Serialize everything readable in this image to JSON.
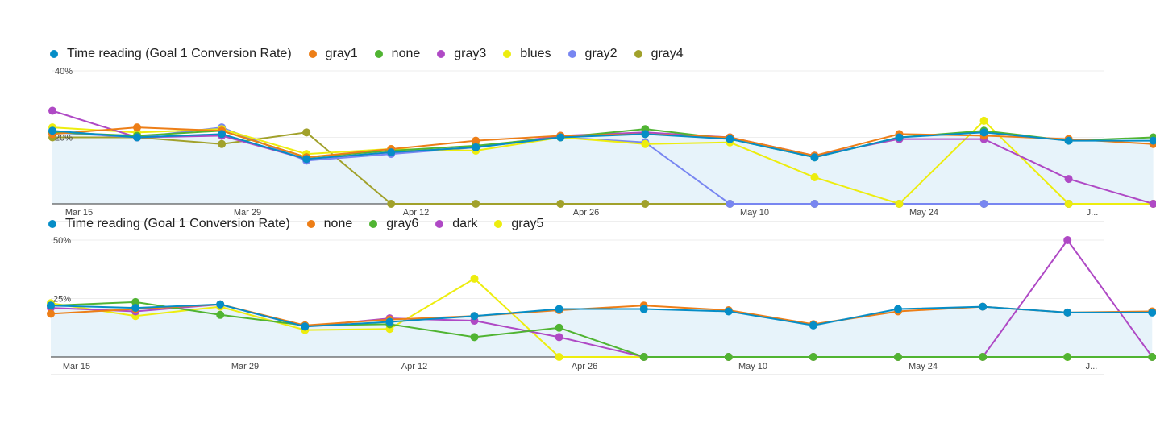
{
  "chart_data": [
    {
      "type": "area",
      "x_labels": [
        "Mar 15",
        "Mar 29",
        "Apr 12",
        "Apr 26",
        "May 10",
        "May 24",
        "J..."
      ],
      "y_ticks": [
        "40%",
        "20%"
      ],
      "ylim": [
        0,
        40
      ],
      "grid": true,
      "legend_position": "top-left",
      "series": [
        {
          "name": "Time reading (Goal 1 Conversion Rate)",
          "color": "#058dc7",
          "filled": true,
          "values": [
            22,
            20,
            21,
            13.5,
            15.5,
            17,
            20,
            21,
            19.5,
            14,
            20,
            21.5,
            19,
            19
          ]
        },
        {
          "name": "gray1",
          "color": "#ed7e17",
          "values": [
            21,
            23,
            22,
            14,
            16.5,
            19,
            20.5,
            21,
            20,
            14.5,
            21,
            20.5,
            19.5,
            18
          ]
        },
        {
          "name": "none",
          "color": "#50b432",
          "values": [
            21.5,
            20.5,
            22,
            14,
            16,
            17.5,
            20,
            22.5,
            19.5,
            14,
            20,
            22,
            19,
            20
          ]
        },
        {
          "name": "gray3",
          "color": "#af49c5",
          "values": [
            28,
            20,
            20.5,
            13.5,
            15.5,
            17,
            20.5,
            21.5,
            20,
            14.5,
            19.5,
            19.5,
            7.5,
            0
          ]
        },
        {
          "name": "blues",
          "color": "#eded0e",
          "values": [
            23,
            21.5,
            22.5,
            15,
            16.5,
            16,
            20,
            18,
            18.5,
            8,
            0,
            25,
            0,
            0
          ]
        },
        {
          "name": "gray2",
          "color": "#7886f1",
          "values": [
            21.5,
            20,
            23,
            13,
            15,
            17,
            20,
            18.5,
            0,
            0,
            0,
            0,
            0,
            0
          ]
        },
        {
          "name": "gray4",
          "color": "#a1a12b",
          "values": [
            20,
            20,
            18,
            21.5,
            0,
            0,
            0,
            0,
            0,
            0,
            0,
            0,
            0,
            0
          ]
        }
      ]
    },
    {
      "type": "area",
      "x_labels": [
        "Mar 15",
        "Mar 29",
        "Apr 12",
        "Apr 26",
        "May 10",
        "May 24",
        "J..."
      ],
      "y_ticks": [
        "50%",
        "25%"
      ],
      "ylim": [
        0,
        50
      ],
      "grid": true,
      "legend_position": "top-left",
      "series": [
        {
          "name": "Time reading (Goal 1 Conversion Rate)",
          "color": "#058dc7",
          "filled": true,
          "values": [
            22,
            21,
            22.5,
            13,
            15,
            17.5,
            20.5,
            20.5,
            19.5,
            13.5,
            20.5,
            21.5,
            19,
            19
          ]
        },
        {
          "name": "none",
          "color": "#ed7e17",
          "values": [
            18.5,
            20.5,
            22.5,
            13.5,
            16,
            17.5,
            20,
            22,
            20,
            14,
            19.5,
            21.5,
            19,
            19.5
          ]
        },
        {
          "name": "gray6",
          "color": "#50b432",
          "values": [
            22,
            23.5,
            18,
            13.5,
            14,
            8.5,
            12.5,
            0,
            0,
            0,
            0,
            0,
            0,
            0
          ]
        },
        {
          "name": "dark",
          "color": "#af49c5",
          "values": [
            21,
            19.5,
            22.5,
            13,
            16.5,
            15.5,
            8.5,
            0,
            0,
            0,
            0,
            0,
            50,
            0
          ]
        },
        {
          "name": "gray5",
          "color": "#eded0e",
          "values": [
            23,
            17.5,
            21.5,
            11.5,
            12,
            33.5,
            0,
            0,
            0,
            0,
            0,
            0,
            0,
            0
          ]
        }
      ]
    }
  ]
}
